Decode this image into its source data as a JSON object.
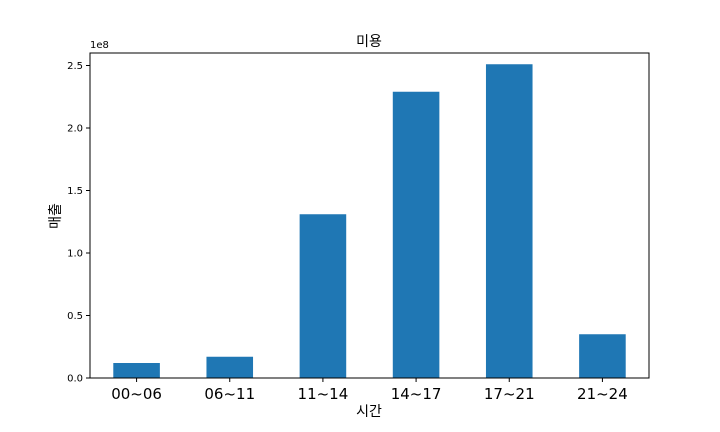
{
  "chart_data": {
    "type": "bar",
    "title": "미용",
    "xlabel": "시간",
    "ylabel": "매출",
    "y_offset_label": "1e8",
    "categories": [
      "00~06",
      "06~11",
      "11~14",
      "14~17",
      "17~21",
      "21~24"
    ],
    "values": [
      0.12,
      0.17,
      1.31,
      2.29,
      2.51,
      0.35
    ],
    "value_multiplier": 100000000,
    "ylim": [
      0,
      2.6
    ],
    "yticks": [
      0.0,
      0.5,
      1.0,
      1.5,
      2.0,
      2.5
    ],
    "ytick_labels": [
      "0.0",
      "0.5",
      "1.0",
      "1.5",
      "2.0",
      "2.5"
    ],
    "bar_color": "#1f77b4",
    "grid": false,
    "legend": "none"
  }
}
